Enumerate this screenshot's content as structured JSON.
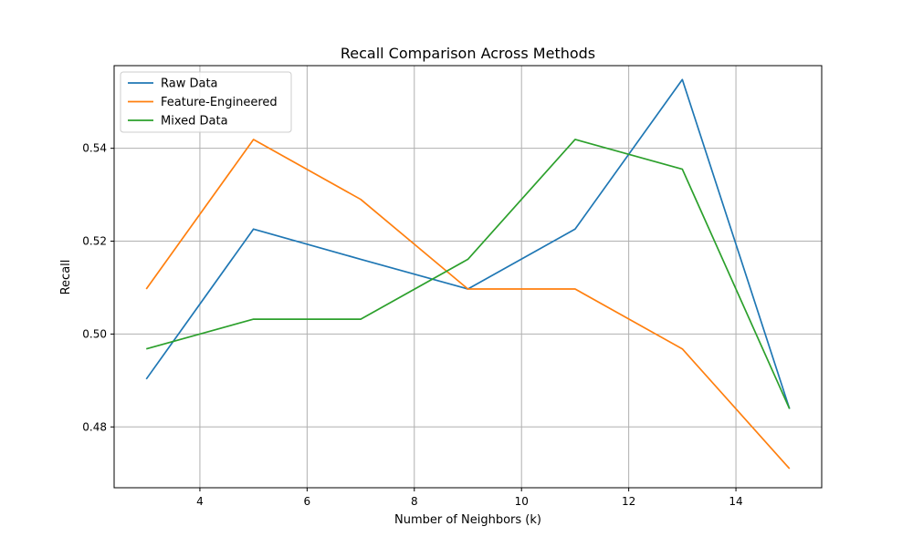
{
  "chart_data": {
    "type": "line",
    "title": "Recall Comparison Across Methods",
    "xlabel": "Number of Neighbors (k)",
    "ylabel": "Recall",
    "x": [
      3,
      5,
      7,
      9,
      11,
      13,
      15
    ],
    "xlim": [
      2.4,
      15.6
    ],
    "ylim": [
      0.4669,
      0.5578
    ],
    "xticks": [
      4,
      6,
      8,
      10,
      12,
      14
    ],
    "yticks": [
      0.48,
      0.5,
      0.52,
      0.54
    ],
    "ytick_labels": [
      "0.48",
      "0.50",
      "0.52",
      "0.54"
    ],
    "grid": true,
    "legend_position": "top-left",
    "series": [
      {
        "name": "Raw Data",
        "color": "#1f77b4",
        "values": [
          0.4903,
          0.5226,
          0.5161,
          0.5097,
          0.5226,
          0.5548,
          0.4839
        ]
      },
      {
        "name": "Feature-Engineered",
        "color": "#ff7f0e",
        "values": [
          0.5097,
          0.5419,
          0.529,
          0.5097,
          0.5097,
          0.4968,
          0.471
        ]
      },
      {
        "name": "Mixed Data",
        "color": "#2ca02c",
        "values": [
          0.4968,
          0.5032,
          0.5032,
          0.5161,
          0.5419,
          0.5355,
          0.4839
        ]
      }
    ]
  }
}
